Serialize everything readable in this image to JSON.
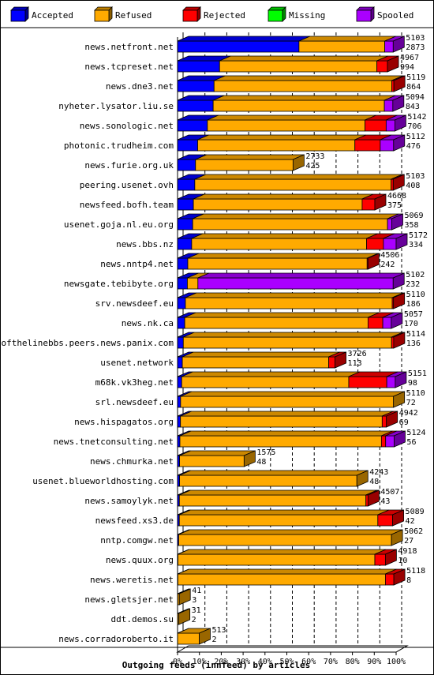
{
  "chart_data": {
    "type": "bar",
    "orientation": "horizontal",
    "stacked": true,
    "three_d": true,
    "title": "Outgoing feeds (innfeed) by articles",
    "xlabel": "",
    "ylabel": "",
    "x_ticks": [
      "0%",
      "10%",
      "20%",
      "30%",
      "40%",
      "50%",
      "60%",
      "70%",
      "80%",
      "90%",
      "100%"
    ],
    "xlim": [
      0,
      100
    ],
    "scale_max": 5172,
    "grid": "vertical-dashed",
    "legend": {
      "placement": "top",
      "items": [
        {
          "name": "Accepted",
          "color": "#0000ff"
        },
        {
          "name": "Refused",
          "color": "#ffaa00"
        },
        {
          "name": "Rejected",
          "color": "#ff0000"
        },
        {
          "name": "Missing",
          "color": "#00ff00"
        },
        {
          "name": "Spooled",
          "color": "#aa00ff"
        }
      ]
    },
    "colors": {
      "Accepted": "#0000ff",
      "Refused": "#ffaa00",
      "Rejected": "#ff0000",
      "Missing": "#00ff00",
      "Spooled": "#aa00ff"
    },
    "series_order": [
      "Accepted",
      "Refused",
      "Rejected",
      "Missing",
      "Spooled"
    ],
    "rows": [
      {
        "name": "news.netfront.net",
        "total": "5103",
        "accepted": "2873",
        "seg": {
          "Accepted": 2873,
          "Refused": 2030,
          "Rejected": 0,
          "Missing": 0,
          "Spooled": 200
        }
      },
      {
        "name": "news.tcpreset.net",
        "total": "4967",
        "accepted": "994",
        "seg": {
          "Accepted": 994,
          "Refused": 3723,
          "Rejected": 250,
          "Missing": 0,
          "Spooled": 0
        }
      },
      {
        "name": "news.dne3.net",
        "total": "5119",
        "accepted": "864",
        "seg": {
          "Accepted": 864,
          "Refused": 4205,
          "Rejected": 50,
          "Missing": 0,
          "Spooled": 0
        }
      },
      {
        "name": "nyheter.lysator.liu.se",
        "total": "5094",
        "accepted": "843",
        "seg": {
          "Accepted": 843,
          "Refused": 4051,
          "Rejected": 0,
          "Missing": 0,
          "Spooled": 200
        }
      },
      {
        "name": "news.sonologic.net",
        "total": "5142",
        "accepted": "706",
        "seg": {
          "Accepted": 706,
          "Refused": 3730,
          "Rejected": 500,
          "Missing": 0,
          "Spooled": 206
        }
      },
      {
        "name": "photonic.trudheim.com",
        "total": "5112",
        "accepted": "476",
        "seg": {
          "Accepted": 476,
          "Refused": 3720,
          "Rejected": 600,
          "Missing": 0,
          "Spooled": 316
        }
      },
      {
        "name": "news.furie.org.uk",
        "total": "2733",
        "accepted": "425",
        "seg": {
          "Accepted": 425,
          "Refused": 2308,
          "Rejected": 0,
          "Missing": 0,
          "Spooled": 0
        }
      },
      {
        "name": "peering.usenet.ovh",
        "total": "5103",
        "accepted": "408",
        "seg": {
          "Accepted": 408,
          "Refused": 4645,
          "Rejected": 50,
          "Missing": 0,
          "Spooled": 0
        }
      },
      {
        "name": "newsfeed.bofh.team",
        "total": "4668",
        "accepted": "375",
        "seg": {
          "Accepted": 375,
          "Refused": 3993,
          "Rejected": 300,
          "Missing": 0,
          "Spooled": 0
        }
      },
      {
        "name": "usenet.goja.nl.eu.org",
        "total": "5069",
        "accepted": "358",
        "seg": {
          "Accepted": 358,
          "Refused": 4611,
          "Rejected": 0,
          "Missing": 0,
          "Spooled": 100
        }
      },
      {
        "name": "news.bbs.nz",
        "total": "5172",
        "accepted": "334",
        "seg": {
          "Accepted": 334,
          "Refused": 4138,
          "Rejected": 400,
          "Missing": 0,
          "Spooled": 300
        }
      },
      {
        "name": "news.nntp4.net",
        "total": "4506",
        "accepted": "242",
        "seg": {
          "Accepted": 242,
          "Refused": 4244,
          "Rejected": 20,
          "Missing": 0,
          "Spooled": 0
        }
      },
      {
        "name": "newsgate.tebibyte.org",
        "total": "5102",
        "accepted": "232",
        "seg": {
          "Accepted": 232,
          "Refused": 250,
          "Rejected": 0,
          "Missing": 0,
          "Spooled": 4620
        }
      },
      {
        "name": "srv.newsdeef.eu",
        "total": "5110",
        "accepted": "186",
        "seg": {
          "Accepted": 186,
          "Refused": 4894,
          "Rejected": 30,
          "Missing": 0,
          "Spooled": 0
        }
      },
      {
        "name": "news.nk.ca",
        "total": "5057",
        "accepted": "170",
        "seg": {
          "Accepted": 170,
          "Refused": 4337,
          "Rejected": 350,
          "Missing": 0,
          "Spooled": 200
        }
      },
      {
        "name": "endofthelinebbs.peers.news.panix.com",
        "total": "5114",
        "accepted": "136",
        "seg": {
          "Accepted": 136,
          "Refused": 4928,
          "Rejected": 50,
          "Missing": 0,
          "Spooled": 0
        }
      },
      {
        "name": "usenet.network",
        "total": "3726",
        "accepted": "113",
        "seg": {
          "Accepted": 113,
          "Refused": 3463,
          "Rejected": 150,
          "Missing": 0,
          "Spooled": 0
        }
      },
      {
        "name": "m68k.vk3heg.net",
        "total": "5151",
        "accepted": "98",
        "seg": {
          "Accepted": 98,
          "Refused": 3953,
          "Rejected": 900,
          "Missing": 0,
          "Spooled": 200
        }
      },
      {
        "name": "srl.newsdeef.eu",
        "total": "5110",
        "accepted": "72",
        "seg": {
          "Accepted": 72,
          "Refused": 5038,
          "Rejected": 0,
          "Missing": 0,
          "Spooled": 0
        }
      },
      {
        "name": "news.hispagatos.org",
        "total": "4942",
        "accepted": "69",
        "seg": {
          "Accepted": 69,
          "Refused": 4773,
          "Rejected": 100,
          "Missing": 0,
          "Spooled": 0
        }
      },
      {
        "name": "news.tnetconsulting.net",
        "total": "5124",
        "accepted": "56",
        "seg": {
          "Accepted": 56,
          "Refused": 4768,
          "Rejected": 100,
          "Missing": 0,
          "Spooled": 200
        }
      },
      {
        "name": "news.chmurka.net",
        "total": "1575",
        "accepted": "48",
        "seg": {
          "Accepted": 48,
          "Refused": 1527,
          "Rejected": 0,
          "Missing": 0,
          "Spooled": 0
        }
      },
      {
        "name": "usenet.blueworldhosting.com",
        "total": "4243",
        "accepted": "48",
        "seg": {
          "Accepted": 48,
          "Refused": 4195,
          "Rejected": 0,
          "Missing": 0,
          "Spooled": 0
        }
      },
      {
        "name": "news.samoylyk.net",
        "total": "4507",
        "accepted": "43",
        "seg": {
          "Accepted": 43,
          "Refused": 4414,
          "Rejected": 50,
          "Missing": 0,
          "Spooled": 0
        }
      },
      {
        "name": "newsfeed.xs3.de",
        "total": "5089",
        "accepted": "42",
        "seg": {
          "Accepted": 42,
          "Refused": 4697,
          "Rejected": 350,
          "Missing": 0,
          "Spooled": 0
        }
      },
      {
        "name": "nntp.comgw.net",
        "total": "5062",
        "accepted": "27",
        "seg": {
          "Accepted": 27,
          "Refused": 5035,
          "Rejected": 0,
          "Missing": 0,
          "Spooled": 0
        }
      },
      {
        "name": "news.quux.org",
        "total": "4918",
        "accepted": "10",
        "seg": {
          "Accepted": 10,
          "Refused": 4658,
          "Rejected": 250,
          "Missing": 0,
          "Spooled": 0
        }
      },
      {
        "name": "news.weretis.net",
        "total": "5118",
        "accepted": "8",
        "seg": {
          "Accepted": 8,
          "Refused": 4910,
          "Rejected": 200,
          "Missing": 0,
          "Spooled": 0
        }
      },
      {
        "name": "news.gletsjer.net",
        "total": "41",
        "accepted": "3",
        "seg": {
          "Accepted": 3,
          "Refused": 38,
          "Rejected": 0,
          "Missing": 0,
          "Spooled": 0
        }
      },
      {
        "name": "ddt.demos.su",
        "total": "31",
        "accepted": "2",
        "seg": {
          "Accepted": 2,
          "Refused": 29,
          "Rejected": 0,
          "Missing": 0,
          "Spooled": 0
        }
      },
      {
        "name": "news.corradoroberto.it",
        "total": "513",
        "accepted": "2",
        "seg": {
          "Accepted": 2,
          "Refused": 511,
          "Rejected": 0,
          "Missing": 0,
          "Spooled": 0
        }
      }
    ]
  }
}
